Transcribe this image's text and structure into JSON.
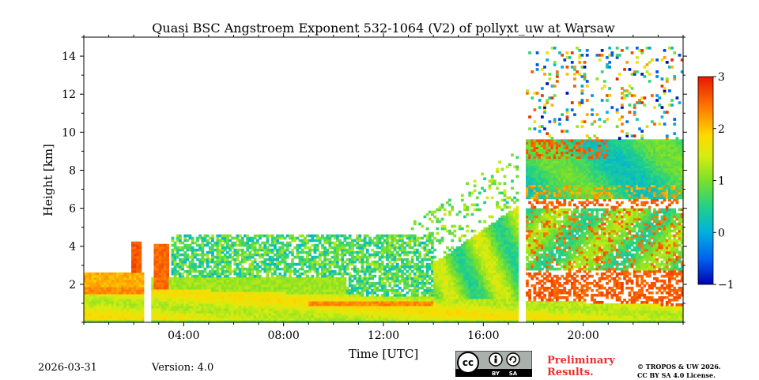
{
  "chart_data": {
    "type": "heatmap",
    "title": "Quasi BSC Angstroem Exponent 532-1064 (V2) of pollyxt_uw at Warsaw",
    "xlabel": "Time [UTC]",
    "ylabel": "Height [km]",
    "xlim_hours": [
      0,
      24
    ],
    "ylim_km": [
      0,
      15
    ],
    "x_ticks": [
      {
        "value": 4,
        "label": "04:00"
      },
      {
        "value": 8,
        "label": "08:00"
      },
      {
        "value": 12,
        "label": "12:00"
      },
      {
        "value": 16,
        "label": "16:00"
      },
      {
        "value": 20,
        "label": "20:00"
      }
    ],
    "y_ticks": [
      {
        "value": 2,
        "label": "2"
      },
      {
        "value": 4,
        "label": "4"
      },
      {
        "value": 6,
        "label": "6"
      },
      {
        "value": 8,
        "label": "8"
      },
      {
        "value": 10,
        "label": "10"
      },
      {
        "value": 12,
        "label": "12"
      },
      {
        "value": 14,
        "label": "14"
      }
    ],
    "colorbar": {
      "range": [
        -1,
        3
      ],
      "ticks": [
        {
          "value": 3,
          "label": "3"
        },
        {
          "value": 2,
          "label": "2"
        },
        {
          "value": 1,
          "label": "1"
        },
        {
          "value": 0,
          "label": "0"
        },
        {
          "value": -1,
          "label": "−1"
        }
      ],
      "colormap": "jet"
    },
    "data_gaps_hours": [
      2.55,
      17.55
    ],
    "regions": [
      {
        "name": "boundary layer",
        "t_start": 0,
        "t_end": 24,
        "h_bottom": 0,
        "h_top_start": 1.9,
        "h_top_end": 0.9,
        "value": 1.6
      },
      {
        "name": "residual layer morning",
        "t_start": 2.6,
        "t_end": 10,
        "h_bottom": 1.4,
        "h_top": 2.4,
        "value": 1.1
      },
      {
        "name": "convective plumes",
        "t_start": 3,
        "t_end": 14,
        "h_bottom": 2,
        "h_top": 4.5,
        "value": 1.0
      },
      {
        "name": "afternoon aerosol layer",
        "t_start": 13,
        "t_end": 17.5,
        "h_bottom": 2.2,
        "h_top": 6.2,
        "value": 0.9
      },
      {
        "name": "lofted layer evening",
        "t_start": 17.6,
        "t_end": 24,
        "h_bottom": 6.5,
        "h_top": 9.6,
        "value": 0.6
      },
      {
        "name": "mid layer evening",
        "t_start": 17.6,
        "t_end": 24,
        "h_bottom": 2.8,
        "h_top": 6,
        "value": 1.0
      }
    ]
  },
  "footer": {
    "date": "2026-03-31",
    "version": "Version: 4.0",
    "license_badge_text": [
      "BY",
      "SA"
    ],
    "preliminary": [
      "Preliminary",
      "Results."
    ],
    "copyright": [
      "© TROPOS & UW 2026.",
      "CC BY SA 4.0 License."
    ]
  },
  "colors": {
    "preliminary": "#e8302a",
    "badge_bg": "#aab0ab"
  }
}
